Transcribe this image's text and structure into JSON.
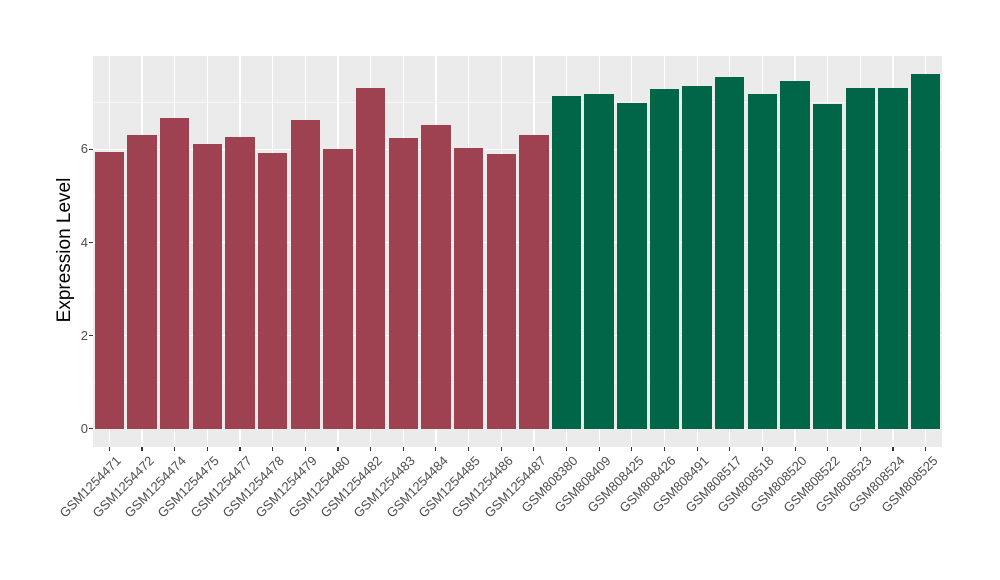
{
  "colors": {
    "background": "#FFFFFF",
    "panel_background": "#EBEBEB",
    "gridline": "#FFFFFF",
    "axis_text": "#4D4D4D",
    "axis_title": "#000000",
    "tick_mark": "#333333",
    "bar_red": "#9E4150",
    "bar_green": "#006647"
  },
  "chart_data": {
    "type": "bar",
    "title": "",
    "xlabel": "",
    "ylabel": "Expression Level",
    "ylim": [
      0,
      8
    ],
    "yticks": [
      0,
      2,
      4,
      6
    ],
    "minor_gridlines": [
      1,
      3,
      5,
      7
    ],
    "grid": true,
    "legend_position": "none",
    "categories": [
      "GSM1254471",
      "GSM1254472",
      "GSM1254474",
      "GSM1254475",
      "GSM1254477",
      "GSM1254478",
      "GSM1254479",
      "GSM1254480",
      "GSM1254482",
      "GSM1254483",
      "GSM1254484",
      "GSM1254485",
      "GSM1254486",
      "GSM1254487",
      "GSM808380",
      "GSM808409",
      "GSM808425",
      "GSM808426",
      "GSM808491",
      "GSM808517",
      "GSM808518",
      "GSM808520",
      "GSM808522",
      "GSM808523",
      "GSM808524",
      "GSM808525"
    ],
    "values": [
      5.95,
      6.32,
      6.68,
      6.12,
      6.27,
      5.92,
      6.63,
      6.0,
      7.32,
      6.24,
      6.52,
      6.03,
      5.9,
      6.32,
      7.15,
      7.2,
      7.0,
      7.3,
      7.37,
      7.55,
      7.18,
      7.46,
      6.97,
      7.33,
      7.31,
      7.63
    ],
    "bar_groups": [
      "red",
      "red",
      "red",
      "red",
      "red",
      "red",
      "red",
      "red",
      "red",
      "red",
      "red",
      "red",
      "red",
      "red",
      "green",
      "green",
      "green",
      "green",
      "green",
      "green",
      "green",
      "green",
      "green",
      "green",
      "green",
      "green"
    ],
    "group_colors": {
      "red": "#9E4150",
      "green": "#006647"
    }
  }
}
